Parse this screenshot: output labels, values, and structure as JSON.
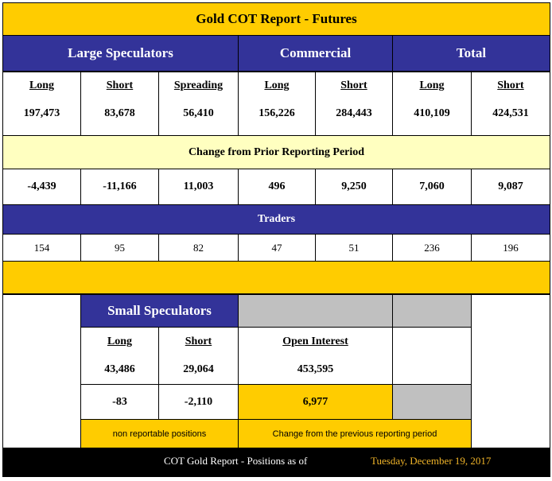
{
  "title": "Gold COT Report - Futures",
  "groups": {
    "large_speculators": "Large Speculators",
    "commercial": "Commercial",
    "total": "Total"
  },
  "columns": [
    "Long",
    "Short",
    "Spreading",
    "Long",
    "Short",
    "Long",
    "Short"
  ],
  "positions": [
    "197,473",
    "83,678",
    "56,410",
    "156,226",
    "284,443",
    "410,109",
    "424,531"
  ],
  "change_title": "Change from Prior Reporting Period",
  "changes": [
    "-4,439",
    "-11,166",
    "11,003",
    "496",
    "9,250",
    "7,060",
    "9,087"
  ],
  "traders_title": "Traders",
  "traders": [
    "154",
    "95",
    "82",
    "47",
    "51",
    "236",
    "196"
  ],
  "small_speculators": {
    "title": "Small Speculators",
    "long_label": "Long",
    "short_label": "Short",
    "long": "43,486",
    "short": "29,064",
    "long_change": "-83",
    "short_change": "-2,110",
    "note": "non reportable positions"
  },
  "open_interest": {
    "label": "Open Interest",
    "value": "453,595",
    "change": "6,977",
    "note": "Change from the previous reporting period"
  },
  "footer": {
    "label": "COT Gold Report - Positions as of",
    "date": "Tuesday, December 19, 2017",
    "date_color": "#f0b429"
  }
}
